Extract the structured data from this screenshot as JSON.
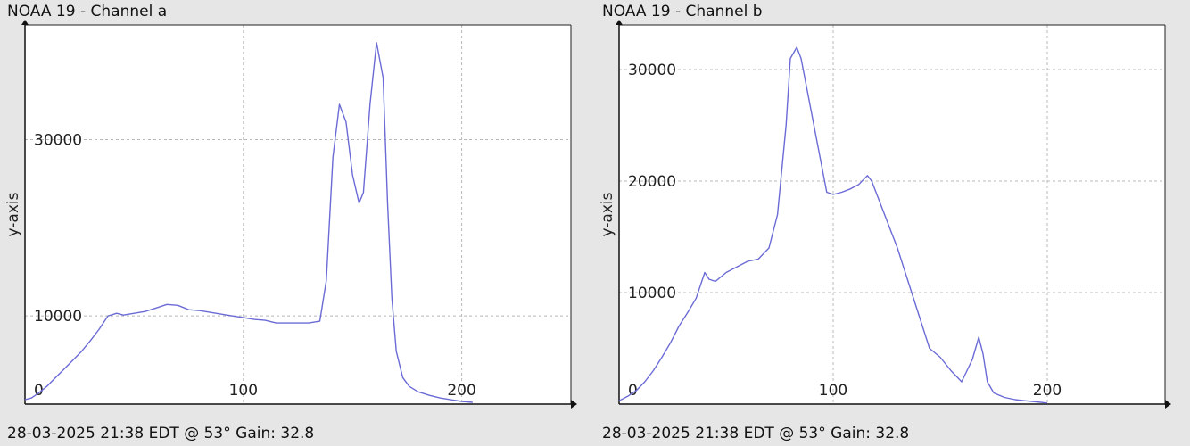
{
  "chart_data": [
    {
      "type": "line",
      "title": "NOAA 19 - Channel a",
      "footer": "28-03-2025 21:38 EDT @ 53° Gain: 32.8",
      "xlabel": "",
      "ylabel": "y-axis",
      "xlim": [
        0,
        250
      ],
      "ylim": [
        0,
        43000
      ],
      "x_ticks": [
        0,
        100,
        200
      ],
      "y_ticks": [
        10000,
        30000
      ],
      "grid": true,
      "color": "#6b6bd6",
      "series": [
        {
          "x": [
            0,
            3,
            6,
            10,
            14,
            18,
            22,
            26,
            30,
            34,
            38,
            42,
            45,
            50,
            55,
            60,
            65,
            70,
            75,
            80,
            85,
            90,
            95,
            100,
            105,
            110,
            115,
            120,
            125,
            130,
            135,
            138,
            141,
            144,
            147,
            150,
            153,
            155,
            158,
            161,
            164,
            166,
            168,
            170,
            173,
            176,
            180,
            185,
            190,
            195,
            200,
            205
          ],
          "values": [
            500,
            700,
            1200,
            2000,
            3000,
            4000,
            5000,
            6000,
            7200,
            8500,
            10000,
            10300,
            10100,
            10300,
            10500,
            10900,
            11300,
            11200,
            10700,
            10600,
            10400,
            10200,
            10000,
            9800,
            9600,
            9500,
            9200,
            9200,
            9200,
            9200,
            9400,
            14000,
            28000,
            34000,
            32000,
            26000,
            22800,
            24000,
            34000,
            41000,
            37000,
            23000,
            12000,
            6000,
            3000,
            2000,
            1400,
            1000,
            700,
            500,
            300,
            200
          ]
        }
      ]
    },
    {
      "type": "line",
      "title": "NOAA 19 - Channel b",
      "footer": "28-03-2025 21:38 EDT @ 53° Gain: 32.8",
      "xlabel": "",
      "ylabel": "y-axis",
      "xlim": [
        0,
        255
      ],
      "ylim": [
        0,
        34000
      ],
      "x_ticks": [
        0,
        100,
        200
      ],
      "y_ticks": [
        10000,
        20000,
        30000
      ],
      "grid": true,
      "color": "#6b6bd6",
      "series": [
        {
          "x": [
            0,
            4,
            8,
            12,
            16,
            20,
            24,
            28,
            32,
            36,
            40,
            42,
            45,
            50,
            55,
            60,
            65,
            70,
            74,
            78,
            80,
            83,
            85,
            88,
            91,
            94,
            97,
            100,
            104,
            108,
            112,
            116,
            118,
            121,
            125,
            130,
            135,
            140,
            145,
            150,
            155,
            160,
            165,
            168,
            170,
            172,
            175,
            180,
            185,
            190,
            195,
            200
          ],
          "values": [
            300,
            700,
            1200,
            2000,
            3000,
            4200,
            5500,
            7000,
            8200,
            9500,
            11800,
            11200,
            11000,
            11800,
            12300,
            12800,
            13000,
            14000,
            17000,
            25000,
            31000,
            32000,
            31000,
            28000,
            25000,
            22000,
            19000,
            18800,
            19000,
            19300,
            19700,
            20500,
            20000,
            18500,
            16500,
            14000,
            11000,
            8000,
            5000,
            4200,
            3000,
            2000,
            4000,
            6000,
            4500,
            2000,
            1000,
            600,
            400,
            300,
            200,
            100
          ]
        }
      ]
    }
  ]
}
